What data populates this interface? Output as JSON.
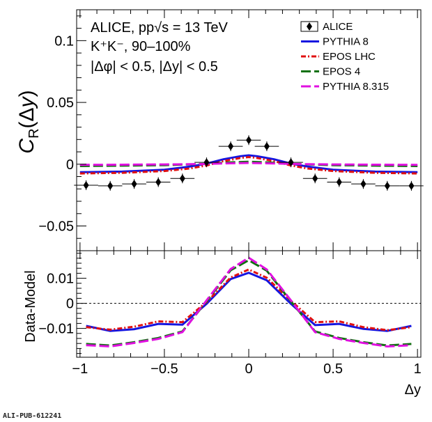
{
  "annotations": {
    "line1": "ALICE, pp√s = 13 TeV",
    "line2": "K⁺K⁻, 90–100%",
    "line3": "|Δφ| < 0.5, |Δy| < 0.5"
  },
  "footer": "ALI-PUB-612241",
  "chart_data": [
    {
      "type": "line",
      "ylabel": "C_R(Δy)",
      "ylim": [
        -0.07,
        0.125
      ],
      "xlim": [
        -1.02,
        1.02
      ],
      "yticks": [
        -0.05,
        0,
        0.05,
        0.1
      ],
      "ytick_labels": [
        "−0.05",
        "0",
        "0.05",
        "0.1"
      ],
      "legend": {
        "position": "top-right",
        "entries": [
          "ALICE",
          "PYTHIA 8",
          "EPOS LHC",
          "EPOS 4",
          "PYTHIA 8.315"
        ]
      },
      "data_points": {
        "name": "ALICE",
        "x": [
          -0.964,
          -0.821,
          -0.679,
          -0.536,
          -0.393,
          -0.25,
          -0.107,
          0.0,
          0.107,
          0.25,
          0.393,
          0.536,
          0.679,
          0.821,
          0.964
        ],
        "y": [
          -0.017,
          -0.0175,
          -0.016,
          -0.0145,
          -0.0115,
          0.0015,
          0.0145,
          0.0195,
          0.0145,
          0.0015,
          -0.0115,
          -0.0145,
          -0.016,
          -0.0175,
          -0.0175
        ],
        "xerr": 0.0715
      },
      "series": [
        {
          "name": "PYTHIA 8",
          "color": "#1515e0",
          "style": "solid",
          "x": [
            -1,
            -0.75,
            -0.5,
            -0.35,
            -0.25,
            -0.15,
            -0.05,
            0,
            0.05,
            0.15,
            0.25,
            0.35,
            0.5,
            0.75,
            1
          ],
          "y": [
            -0.0065,
            -0.006,
            -0.0045,
            -0.002,
            0.0005,
            0.004,
            0.0065,
            0.0072,
            0.0065,
            0.004,
            0.0005,
            -0.002,
            -0.0045,
            -0.006,
            -0.0065
          ]
        },
        {
          "name": "EPOS LHC",
          "color": "#e01010",
          "style": "dashdot",
          "x": [
            -1,
            -0.75,
            -0.5,
            -0.35,
            -0.25,
            -0.15,
            -0.05,
            0,
            0.05,
            0.15,
            0.25,
            0.35,
            0.5,
            0.75,
            1
          ],
          "y": [
            -0.0075,
            -0.007,
            -0.0055,
            -0.0035,
            -0.001,
            0.0025,
            0.005,
            0.0058,
            0.005,
            0.0025,
            -0.001,
            -0.0035,
            -0.0055,
            -0.007,
            -0.0075
          ]
        },
        {
          "name": "EPOS 4",
          "color": "#107010",
          "style": "longdash",
          "x": [
            -1,
            -0.75,
            -0.5,
            -0.35,
            -0.25,
            -0.15,
            -0.05,
            0,
            0.05,
            0.15,
            0.25,
            0.35,
            0.5,
            0.75,
            1
          ],
          "y": [
            -0.0015,
            -0.0012,
            -0.0008,
            -0.0002,
            0.0003,
            0.0012,
            0.0018,
            0.002,
            0.0018,
            0.0012,
            0.0003,
            -0.0002,
            -0.0008,
            -0.0012,
            -0.0015
          ]
        },
        {
          "name": "PYTHIA 8.315",
          "color": "#e010e0",
          "style": "longdash",
          "x": [
            -1,
            -0.75,
            -0.5,
            -0.35,
            -0.25,
            -0.15,
            -0.05,
            0,
            0.05,
            0.15,
            0.25,
            0.35,
            0.5,
            0.75,
            1
          ],
          "y": [
            -0.0005,
            -0.0004,
            -0.0002,
            0.0,
            0.0002,
            0.0006,
            0.0009,
            0.001,
            0.0009,
            0.0006,
            0.0002,
            0.0,
            -0.0002,
            -0.0004,
            -0.0005
          ]
        }
      ]
    },
    {
      "type": "line",
      "ylabel": "Data-Model",
      "xlabel": "Δy",
      "ylim": [
        -0.0215,
        0.021
      ],
      "xlim": [
        -1.02,
        1.02
      ],
      "yticks": [
        -0.01,
        0,
        0.01
      ],
      "ytick_labels": [
        "−0.01",
        "0",
        "0.01"
      ],
      "xticks": [
        -1,
        -0.5,
        0,
        0.5,
        1
      ],
      "xtick_labels": [
        "−1",
        "−0.5",
        "0",
        "0.5",
        "1"
      ],
      "zero_line": "dotted",
      "series": [
        {
          "name": "PYTHIA 8",
          "color": "#1515e0",
          "style": "solid",
          "x": [
            -0.964,
            -0.821,
            -0.679,
            -0.536,
            -0.393,
            -0.25,
            -0.107,
            0.0,
            0.107,
            0.25,
            0.393,
            0.536,
            0.679,
            0.821,
            0.964
          ],
          "y": [
            -0.009,
            -0.011,
            -0.0103,
            -0.0082,
            -0.0085,
            -0.0002,
            0.0097,
            0.0122,
            0.0092,
            -0.0002,
            -0.0087,
            -0.0082,
            -0.0102,
            -0.011,
            -0.009
          ]
        },
        {
          "name": "EPOS LHC",
          "color": "#e01010",
          "style": "dashdot",
          "x": [
            -0.964,
            -0.821,
            -0.679,
            -0.536,
            -0.393,
            -0.25,
            -0.107,
            0.0,
            0.107,
            0.25,
            0.393,
            0.536,
            0.679,
            0.821,
            0.964
          ],
          "y": [
            -0.0095,
            -0.0105,
            -0.0093,
            -0.0072,
            -0.0075,
            0.0005,
            0.0103,
            0.0135,
            0.0102,
            0.001,
            -0.0075,
            -0.0072,
            -0.0095,
            -0.0107,
            -0.0095
          ]
        },
        {
          "name": "EPOS 4",
          "color": "#107010",
          "style": "longdash",
          "x": [
            -0.964,
            -0.821,
            -0.679,
            -0.536,
            -0.393,
            -0.25,
            -0.107,
            0.0,
            0.107,
            0.25,
            0.393,
            0.536,
            0.679,
            0.821,
            0.964
          ],
          "y": [
            -0.0162,
            -0.0168,
            -0.0155,
            -0.0138,
            -0.0112,
            0.0008,
            0.0132,
            0.0172,
            0.013,
            0.0008,
            -0.0112,
            -0.0138,
            -0.0155,
            -0.0168,
            -0.0162
          ]
        },
        {
          "name": "PYTHIA 8.315",
          "color": "#e010e0",
          "style": "longdash",
          "x": [
            -0.964,
            -0.821,
            -0.679,
            -0.536,
            -0.393,
            -0.25,
            -0.107,
            0.0,
            0.107,
            0.25,
            0.393,
            0.536,
            0.679,
            0.821,
            0.964
          ],
          "y": [
            -0.0167,
            -0.0172,
            -0.0158,
            -0.0142,
            -0.0115,
            0.0012,
            0.0137,
            0.0182,
            0.0135,
            0.0012,
            -0.0115,
            -0.0142,
            -0.0158,
            -0.0172,
            -0.0167
          ]
        }
      ]
    }
  ]
}
